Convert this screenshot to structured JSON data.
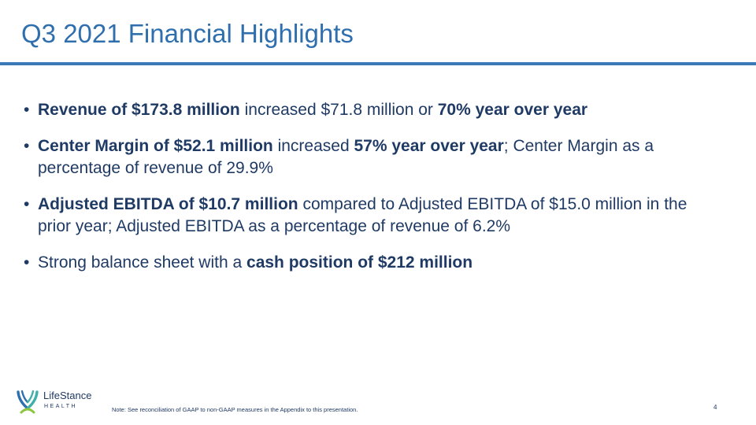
{
  "slide": {
    "title": "Q3 2021 Financial Highlights",
    "bullets": [
      {
        "b1": "Revenue of $173.8 million",
        "t1": " increased $71.8 million or ",
        "b2": "70% year over year"
      },
      {
        "b1": "Center Margin of $52.1 million",
        "t1": " increased ",
        "b2": "57% year over year",
        "t2": "; Center Margin as a percentage of revenue of 29.9%"
      },
      {
        "b1": "Adjusted EBITDA of $10.7 million",
        "t1": " compared to Adjusted EBITDA of $15.0 million in the prior year; Adjusted EBITDA as a percentage of revenue of 6.2%"
      },
      {
        "t0": "Strong balance sheet with a ",
        "b1": "cash position of $212 million"
      }
    ],
    "bullet_glyph": "•"
  },
  "footer": {
    "logo_name": "LifeStance",
    "logo_sub": "HEALTH",
    "note": "Note:  See reconciliation of GAAP to non-GAAP measures in the Appendix to this presentation.",
    "page_number": "4"
  },
  "colors": {
    "title": "#2f6fae",
    "rule": "#3a78b8",
    "text": "#1f3a64",
    "logo_blue": "#2f6fae",
    "logo_teal": "#3fb0a9",
    "logo_green": "#8cc63f"
  }
}
